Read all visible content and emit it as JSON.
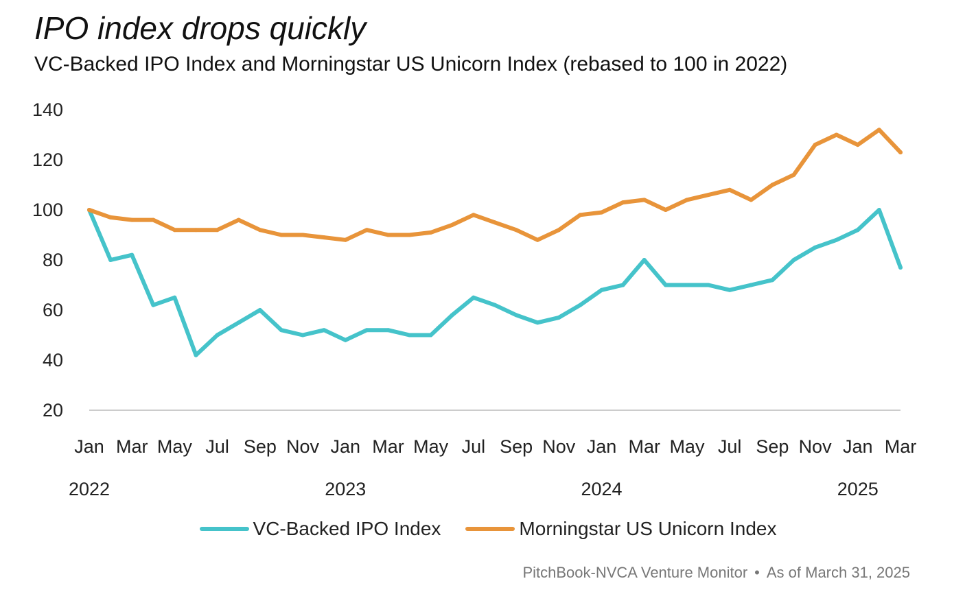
{
  "title": "IPO index drops quickly",
  "subtitle": "VC-Backed IPO Index and Morningstar US Unicorn Index (rebased to 100 in 2022)",
  "source": {
    "name": "PitchBook-NVCA Venture Monitor",
    "separator": "•",
    "date": "As of March 31, 2025"
  },
  "chart_data": {
    "type": "line",
    "ylim": [
      20,
      140
    ],
    "yticks": [
      20,
      40,
      60,
      80,
      100,
      120,
      140
    ],
    "grid": false,
    "legend_position": "bottom",
    "xtick_labels": [
      "Jan",
      "Mar",
      "May",
      "Jul",
      "Sep",
      "Nov",
      "Jan",
      "Mar",
      "May",
      "Jul",
      "Sep",
      "Nov",
      "Jan",
      "Mar",
      "May",
      "Jul",
      "Sep",
      "Nov",
      "Jan",
      "Mar"
    ],
    "year_labels": [
      "2022",
      "2023",
      "2024",
      "2025"
    ],
    "x": [
      "2022-01",
      "2022-02",
      "2022-03",
      "2022-04",
      "2022-05",
      "2022-06",
      "2022-07",
      "2022-08",
      "2022-09",
      "2022-10",
      "2022-11",
      "2022-12",
      "2023-01",
      "2023-02",
      "2023-03",
      "2023-04",
      "2023-05",
      "2023-06",
      "2023-07",
      "2023-08",
      "2023-09",
      "2023-10",
      "2023-11",
      "2023-12",
      "2024-01",
      "2024-02",
      "2024-03",
      "2024-04",
      "2024-05",
      "2024-06",
      "2024-07",
      "2024-08",
      "2024-09",
      "2024-10",
      "2024-11",
      "2024-12",
      "2025-01",
      "2025-02",
      "2025-03"
    ],
    "series": [
      {
        "name": "VC-Backed IPO Index",
        "color": "#45c3ca",
        "values": [
          100,
          80,
          82,
          62,
          65,
          42,
          50,
          55,
          60,
          52,
          50,
          52,
          48,
          52,
          52,
          50,
          50,
          58,
          65,
          62,
          58,
          55,
          57,
          62,
          68,
          70,
          80,
          70,
          70,
          70,
          68,
          70,
          72,
          80,
          85,
          88,
          92,
          100,
          77
        ]
      },
      {
        "name": "Morningstar US Unicorn Index",
        "color": "#e8943a",
        "values": [
          100,
          97,
          96,
          96,
          92,
          92,
          92,
          96,
          92,
          90,
          90,
          89,
          88,
          92,
          90,
          90,
          91,
          94,
          98,
          95,
          92,
          88,
          92,
          98,
          99,
          103,
          104,
          100,
          104,
          106,
          108,
          104,
          110,
          114,
          126,
          130,
          126,
          132,
          123
        ]
      }
    ]
  }
}
